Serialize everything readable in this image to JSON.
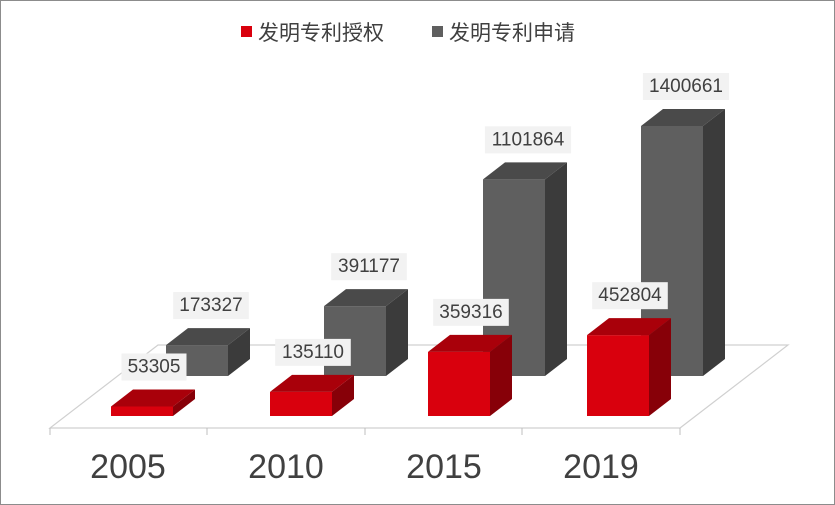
{
  "chart_data": {
    "type": "bar",
    "categories": [
      "2005",
      "2010",
      "2015",
      "2019"
    ],
    "series": [
      {
        "name": "发明专利授权",
        "values": [
          53305,
          135110,
          359316,
          452804
        ],
        "color": "#d9000d"
      },
      {
        "name": "发明专利申请",
        "values": [
          173327,
          391177,
          1101864,
          1400661
        ],
        "color": "#5f5f5f"
      }
    ],
    "legend_position": "top",
    "grid": false,
    "style": "3d-columns"
  }
}
